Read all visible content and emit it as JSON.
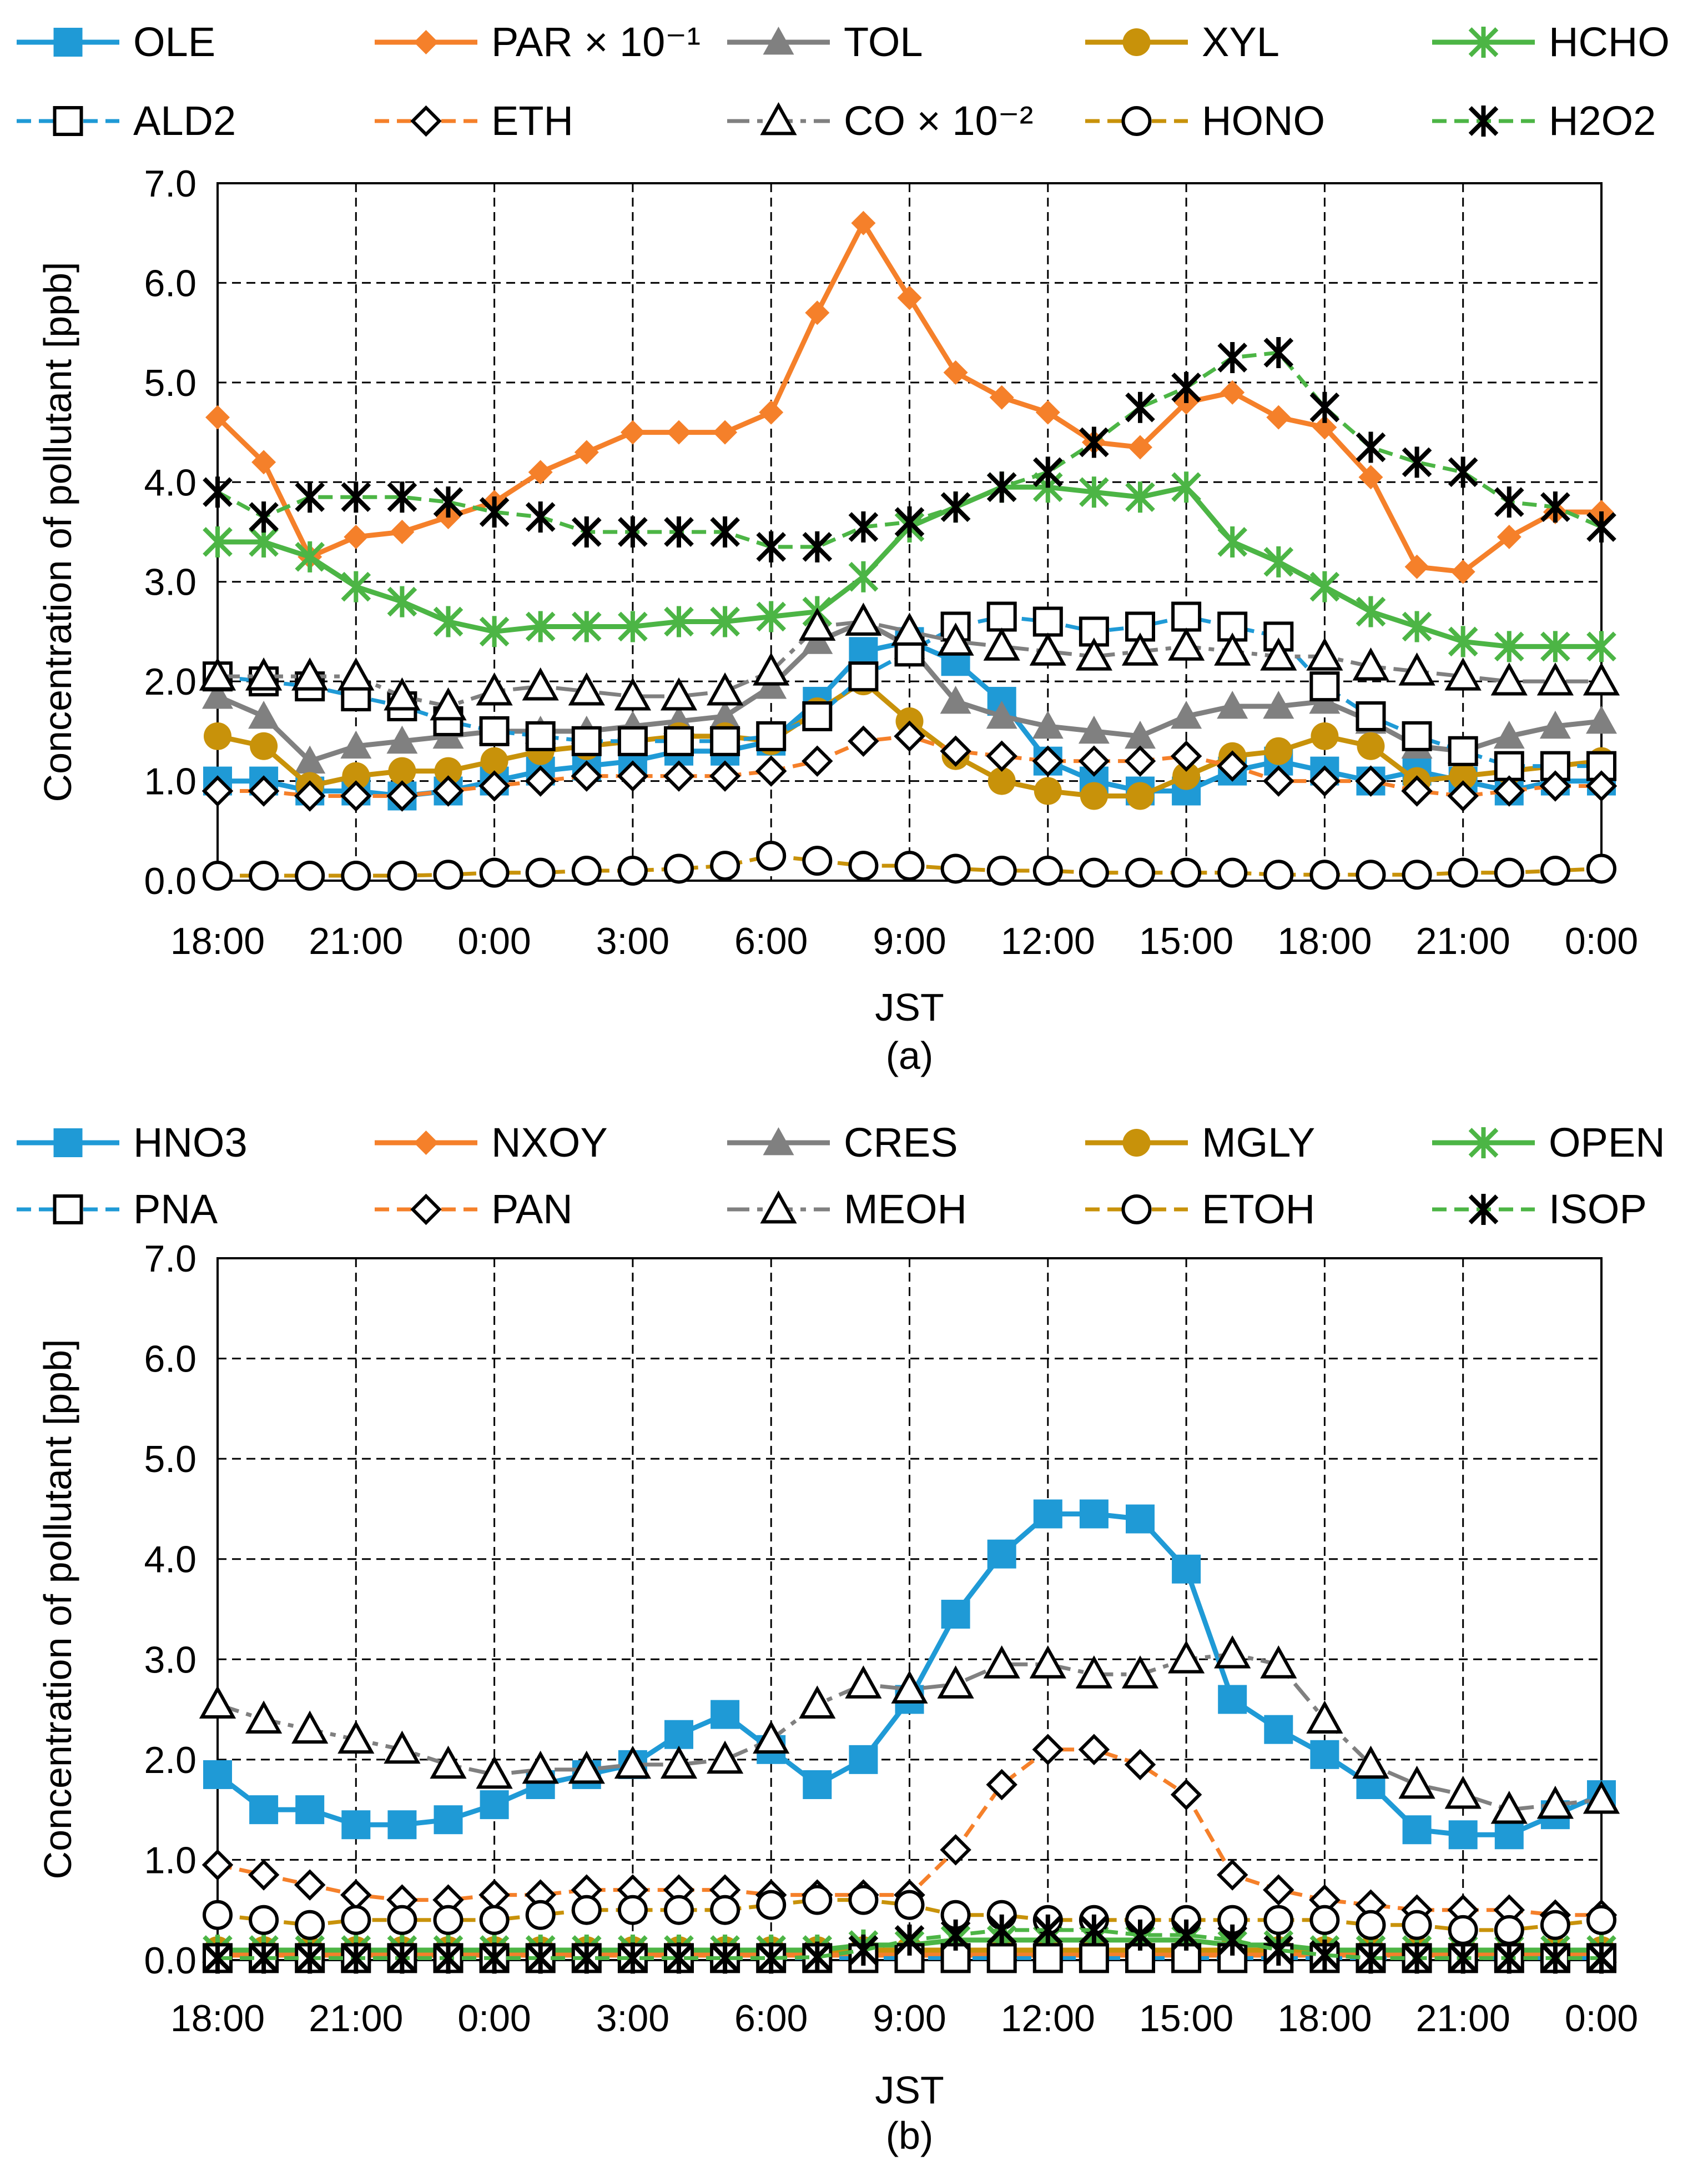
{
  "figure": {
    "panels": [
      {
        "id": "a",
        "caption": "(a)"
      },
      {
        "id": "b",
        "caption": "(b)"
      }
    ]
  },
  "chart_data": [
    {
      "type": "line",
      "panel_caption": "(a)",
      "xlabel": "JST",
      "ylabel": "Concentration of pollutant [ppb]",
      "ylim": [
        0,
        7
      ],
      "yticks": [
        "0.0",
        "1.0",
        "2.0",
        "3.0",
        "4.0",
        "5.0",
        "6.0",
        "7.0"
      ],
      "x_tick_labels": [
        "18:00",
        "21:00",
        "0:00",
        "3:00",
        "6:00",
        "9:00",
        "12:00",
        "15:00",
        "18:00",
        "21:00",
        "0:00"
      ],
      "x_hours": [
        18,
        19,
        20,
        21,
        22,
        23,
        24,
        25,
        26,
        27,
        28,
        29,
        30,
        31,
        32,
        33,
        34,
        35,
        36,
        37,
        38,
        39,
        40,
        41,
        42,
        43,
        44,
        45,
        46,
        47,
        48
      ],
      "grid": true,
      "legend_position": "top",
      "series": [
        {
          "name": "OLE",
          "color": "#1f9ad6",
          "marker": "square-filled",
          "dash": "solid",
          "values": [
            1.0,
            1.0,
            0.9,
            0.9,
            0.85,
            0.9,
            1.0,
            1.1,
            1.15,
            1.2,
            1.3,
            1.3,
            1.4,
            1.8,
            2.3,
            2.4,
            2.2,
            1.8,
            1.2,
            1.0,
            0.9,
            0.9,
            1.1,
            1.2,
            1.1,
            1.0,
            1.1,
            1.0,
            0.9,
            1.0,
            1.0
          ]
        },
        {
          "name": "PAR",
          "label_suffix": " × 10⁻¹",
          "color": "#f5802a",
          "marker": "diamond-filled",
          "dash": "solid",
          "values": [
            4.65,
            4.2,
            3.25,
            3.45,
            3.5,
            3.65,
            3.8,
            4.1,
            4.3,
            4.5,
            4.5,
            4.5,
            4.7,
            5.7,
            6.6,
            5.85,
            5.1,
            4.85,
            4.7,
            4.4,
            4.35,
            4.8,
            4.9,
            4.65,
            4.55,
            4.05,
            3.15,
            3.1,
            3.45,
            3.7,
            3.7
          ]
        },
        {
          "name": "TOL",
          "color": "#808080",
          "marker": "triangle-filled",
          "dash": "solid",
          "values": [
            1.85,
            1.65,
            1.2,
            1.35,
            1.4,
            1.45,
            1.5,
            1.5,
            1.5,
            1.55,
            1.6,
            1.65,
            1.95,
            2.4,
            2.6,
            2.35,
            1.8,
            1.65,
            1.55,
            1.5,
            1.45,
            1.65,
            1.75,
            1.75,
            1.8,
            1.6,
            1.35,
            1.3,
            1.45,
            1.55,
            1.6
          ]
        },
        {
          "name": "XYL",
          "color": "#c8920a",
          "marker": "circle-filled",
          "dash": "solid",
          "values": [
            1.45,
            1.35,
            0.95,
            1.05,
            1.1,
            1.1,
            1.2,
            1.3,
            1.35,
            1.4,
            1.45,
            1.45,
            1.4,
            1.7,
            2.0,
            1.6,
            1.25,
            1.0,
            0.9,
            0.85,
            0.85,
            1.05,
            1.25,
            1.3,
            1.45,
            1.35,
            1.0,
            1.05,
            1.1,
            1.15,
            1.2
          ]
        },
        {
          "name": "HCHO",
          "color": "#4cb545",
          "marker": "asterisk",
          "dash": "solid",
          "values": [
            3.4,
            3.4,
            3.25,
            2.95,
            2.8,
            2.6,
            2.5,
            2.55,
            2.55,
            2.55,
            2.6,
            2.6,
            2.65,
            2.7,
            3.05,
            3.55,
            3.75,
            3.95,
            3.95,
            3.9,
            3.85,
            3.95,
            3.4,
            3.2,
            2.95,
            2.7,
            2.55,
            2.4,
            2.35,
            2.35,
            2.35
          ]
        },
        {
          "name": "ALD2",
          "color": "#1f9ad6",
          "marker": "square-open",
          "dash": "dashed",
          "values": [
            2.05,
            2.0,
            1.95,
            1.85,
            1.75,
            1.6,
            1.5,
            1.45,
            1.4,
            1.4,
            1.4,
            1.4,
            1.45,
            1.65,
            2.05,
            2.3,
            2.55,
            2.65,
            2.6,
            2.5,
            2.55,
            2.65,
            2.55,
            2.45,
            1.95,
            1.65,
            1.45,
            1.3,
            1.15,
            1.15,
            1.15
          ]
        },
        {
          "name": "ETH",
          "color": "#f5802a",
          "marker": "diamond-open",
          "dash": "dashed",
          "values": [
            0.9,
            0.9,
            0.85,
            0.85,
            0.85,
            0.9,
            0.95,
            1.0,
            1.05,
            1.05,
            1.05,
            1.05,
            1.1,
            1.2,
            1.4,
            1.45,
            1.3,
            1.25,
            1.2,
            1.2,
            1.2,
            1.25,
            1.15,
            1.0,
            1.0,
            1.0,
            0.9,
            0.85,
            0.9,
            0.95,
            0.95
          ]
        },
        {
          "name": "CO",
          "label_suffix": " × 10⁻²",
          "color": "#808080",
          "marker": "triangle-open",
          "dash": "dashdot",
          "values": [
            2.05,
            2.05,
            2.05,
            2.05,
            1.85,
            1.75,
            1.9,
            1.95,
            1.9,
            1.85,
            1.85,
            1.9,
            2.1,
            2.55,
            2.6,
            2.5,
            2.4,
            2.35,
            2.3,
            2.25,
            2.3,
            2.35,
            2.3,
            2.25,
            2.25,
            2.15,
            2.1,
            2.05,
            2.0,
            2.0,
            2.0
          ]
        },
        {
          "name": "HONO",
          "color": "#c8920a",
          "marker": "circle-open",
          "dash": "dashed",
          "values": [
            0.05,
            0.05,
            0.05,
            0.05,
            0.05,
            0.06,
            0.08,
            0.08,
            0.1,
            0.1,
            0.12,
            0.15,
            0.25,
            0.2,
            0.15,
            0.15,
            0.12,
            0.1,
            0.1,
            0.08,
            0.08,
            0.08,
            0.08,
            0.06,
            0.06,
            0.06,
            0.06,
            0.08,
            0.08,
            0.1,
            0.12
          ]
        },
        {
          "name": "H2O2",
          "color": "#4cb545",
          "marker": "asterisk-black",
          "dash": "dashed",
          "values": [
            3.9,
            3.65,
            3.85,
            3.85,
            3.85,
            3.8,
            3.7,
            3.65,
            3.5,
            3.5,
            3.5,
            3.5,
            3.35,
            3.35,
            3.55,
            3.6,
            3.75,
            3.95,
            4.1,
            4.4,
            4.75,
            4.95,
            5.25,
            5.3,
            4.75,
            4.35,
            4.2,
            4.1,
            3.8,
            3.75,
            3.55
          ]
        }
      ]
    },
    {
      "type": "line",
      "panel_caption": "(b)",
      "xlabel": "JST",
      "ylabel": "Concentration of pollutant [ppb]",
      "ylim": [
        0,
        7
      ],
      "yticks": [
        "0.0",
        "1.0",
        "2.0",
        "3.0",
        "4.0",
        "5.0",
        "6.0",
        "7.0"
      ],
      "x_tick_labels": [
        "18:00",
        "21:00",
        "0:00",
        "3:00",
        "6:00",
        "9:00",
        "12:00",
        "15:00",
        "18:00",
        "21:00",
        "0:00"
      ],
      "x_hours": [
        18,
        19,
        20,
        21,
        22,
        23,
        24,
        25,
        26,
        27,
        28,
        29,
        30,
        31,
        32,
        33,
        34,
        35,
        36,
        37,
        38,
        39,
        40,
        41,
        42,
        43,
        44,
        45,
        46,
        47,
        48
      ],
      "grid": true,
      "legend_position": "top",
      "series": [
        {
          "name": "HNO3",
          "color": "#1f9ad6",
          "marker": "square-filled",
          "dash": "solid",
          "values": [
            1.85,
            1.5,
            1.5,
            1.35,
            1.35,
            1.4,
            1.55,
            1.75,
            1.85,
            1.95,
            2.25,
            2.45,
            2.1,
            1.75,
            2.0,
            2.6,
            3.45,
            4.05,
            4.45,
            4.45,
            4.4,
            3.9,
            2.6,
            2.3,
            2.05,
            1.75,
            1.3,
            1.25,
            1.25,
            1.45,
            1.65
          ]
        },
        {
          "name": "NXOY",
          "color": "#f5802a",
          "marker": "diamond-filled",
          "dash": "solid",
          "values": [
            0.05,
            0.05,
            0.05,
            0.05,
            0.05,
            0.05,
            0.05,
            0.05,
            0.05,
            0.05,
            0.05,
            0.05,
            0.05,
            0.05,
            0.05,
            0.05,
            0.05,
            0.05,
            0.05,
            0.05,
            0.05,
            0.05,
            0.05,
            0.05,
            0.05,
            0.05,
            0.05,
            0.05,
            0.05,
            0.05,
            0.05
          ]
        },
        {
          "name": "CRES",
          "color": "#808080",
          "marker": "triangle-filled",
          "dash": "solid",
          "values": [
            0.1,
            0.1,
            0.1,
            0.1,
            0.1,
            0.1,
            0.1,
            0.1,
            0.1,
            0.1,
            0.1,
            0.1,
            0.1,
            0.1,
            0.1,
            0.1,
            0.1,
            0.1,
            0.1,
            0.1,
            0.1,
            0.1,
            0.1,
            0.1,
            0.1,
            0.1,
            0.1,
            0.1,
            0.1,
            0.1,
            0.1
          ]
        },
        {
          "name": "MGLY",
          "color": "#c8920a",
          "marker": "circle-filled",
          "dash": "solid",
          "values": [
            0.1,
            0.1,
            0.1,
            0.1,
            0.1,
            0.1,
            0.1,
            0.1,
            0.1,
            0.1,
            0.1,
            0.1,
            0.1,
            0.1,
            0.1,
            0.1,
            0.1,
            0.1,
            0.1,
            0.1,
            0.1,
            0.1,
            0.1,
            0.1,
            0.1,
            0.1,
            0.1,
            0.1,
            0.1,
            0.1,
            0.1
          ]
        },
        {
          "name": "OPEN",
          "color": "#4cb545",
          "marker": "asterisk",
          "dash": "solid",
          "values": [
            0.1,
            0.1,
            0.1,
            0.1,
            0.1,
            0.1,
            0.1,
            0.1,
            0.1,
            0.1,
            0.1,
            0.1,
            0.1,
            0.1,
            0.15,
            0.15,
            0.2,
            0.2,
            0.2,
            0.2,
            0.2,
            0.2,
            0.15,
            0.15,
            0.1,
            0.1,
            0.1,
            0.1,
            0.1,
            0.1,
            0.1
          ]
        },
        {
          "name": "PNA",
          "color": "#1f9ad6",
          "marker": "square-open",
          "dash": "dashed",
          "values": [
            0.02,
            0.02,
            0.02,
            0.02,
            0.02,
            0.02,
            0.02,
            0.02,
            0.02,
            0.02,
            0.02,
            0.02,
            0.02,
            0.02,
            0.02,
            0.02,
            0.02,
            0.02,
            0.02,
            0.02,
            0.02,
            0.02,
            0.02,
            0.02,
            0.02,
            0.02,
            0.02,
            0.02,
            0.02,
            0.02,
            0.02
          ]
        },
        {
          "name": "PAN",
          "color": "#f5802a",
          "marker": "diamond-open",
          "dash": "dashed",
          "values": [
            0.95,
            0.85,
            0.75,
            0.65,
            0.6,
            0.6,
            0.65,
            0.65,
            0.7,
            0.7,
            0.7,
            0.7,
            0.65,
            0.65,
            0.65,
            0.65,
            1.1,
            1.75,
            2.1,
            2.1,
            1.95,
            1.65,
            0.85,
            0.7,
            0.6,
            0.55,
            0.5,
            0.5,
            0.5,
            0.45,
            0.45
          ]
        },
        {
          "name": "MEOH",
          "color": "#808080",
          "marker": "triangle-open",
          "dash": "dashdot",
          "values": [
            2.55,
            2.4,
            2.3,
            2.2,
            2.1,
            1.95,
            1.85,
            1.9,
            1.9,
            1.95,
            1.95,
            2.0,
            2.2,
            2.55,
            2.75,
            2.7,
            2.75,
            2.95,
            2.95,
            2.85,
            2.85,
            3.0,
            3.05,
            2.95,
            2.4,
            1.95,
            1.75,
            1.65,
            1.5,
            1.55,
            1.6
          ]
        },
        {
          "name": "ETOH",
          "color": "#c8920a",
          "marker": "circle-open",
          "dash": "dashed",
          "values": [
            0.45,
            0.4,
            0.35,
            0.4,
            0.4,
            0.4,
            0.4,
            0.45,
            0.5,
            0.5,
            0.5,
            0.5,
            0.55,
            0.6,
            0.6,
            0.55,
            0.45,
            0.45,
            0.4,
            0.4,
            0.4,
            0.4,
            0.4,
            0.4,
            0.4,
            0.35,
            0.35,
            0.3,
            0.3,
            0.35,
            0.4
          ]
        },
        {
          "name": "ISOP",
          "color": "#4cb545",
          "marker": "asterisk-black",
          "dash": "dashed",
          "values": [
            0.02,
            0.02,
            0.02,
            0.02,
            0.02,
            0.02,
            0.02,
            0.02,
            0.02,
            0.02,
            0.02,
            0.02,
            0.02,
            0.03,
            0.1,
            0.2,
            0.25,
            0.3,
            0.3,
            0.3,
            0.25,
            0.25,
            0.2,
            0.1,
            0.05,
            0.02,
            0.02,
            0.02,
            0.02,
            0.02,
            0.02
          ]
        }
      ]
    }
  ]
}
